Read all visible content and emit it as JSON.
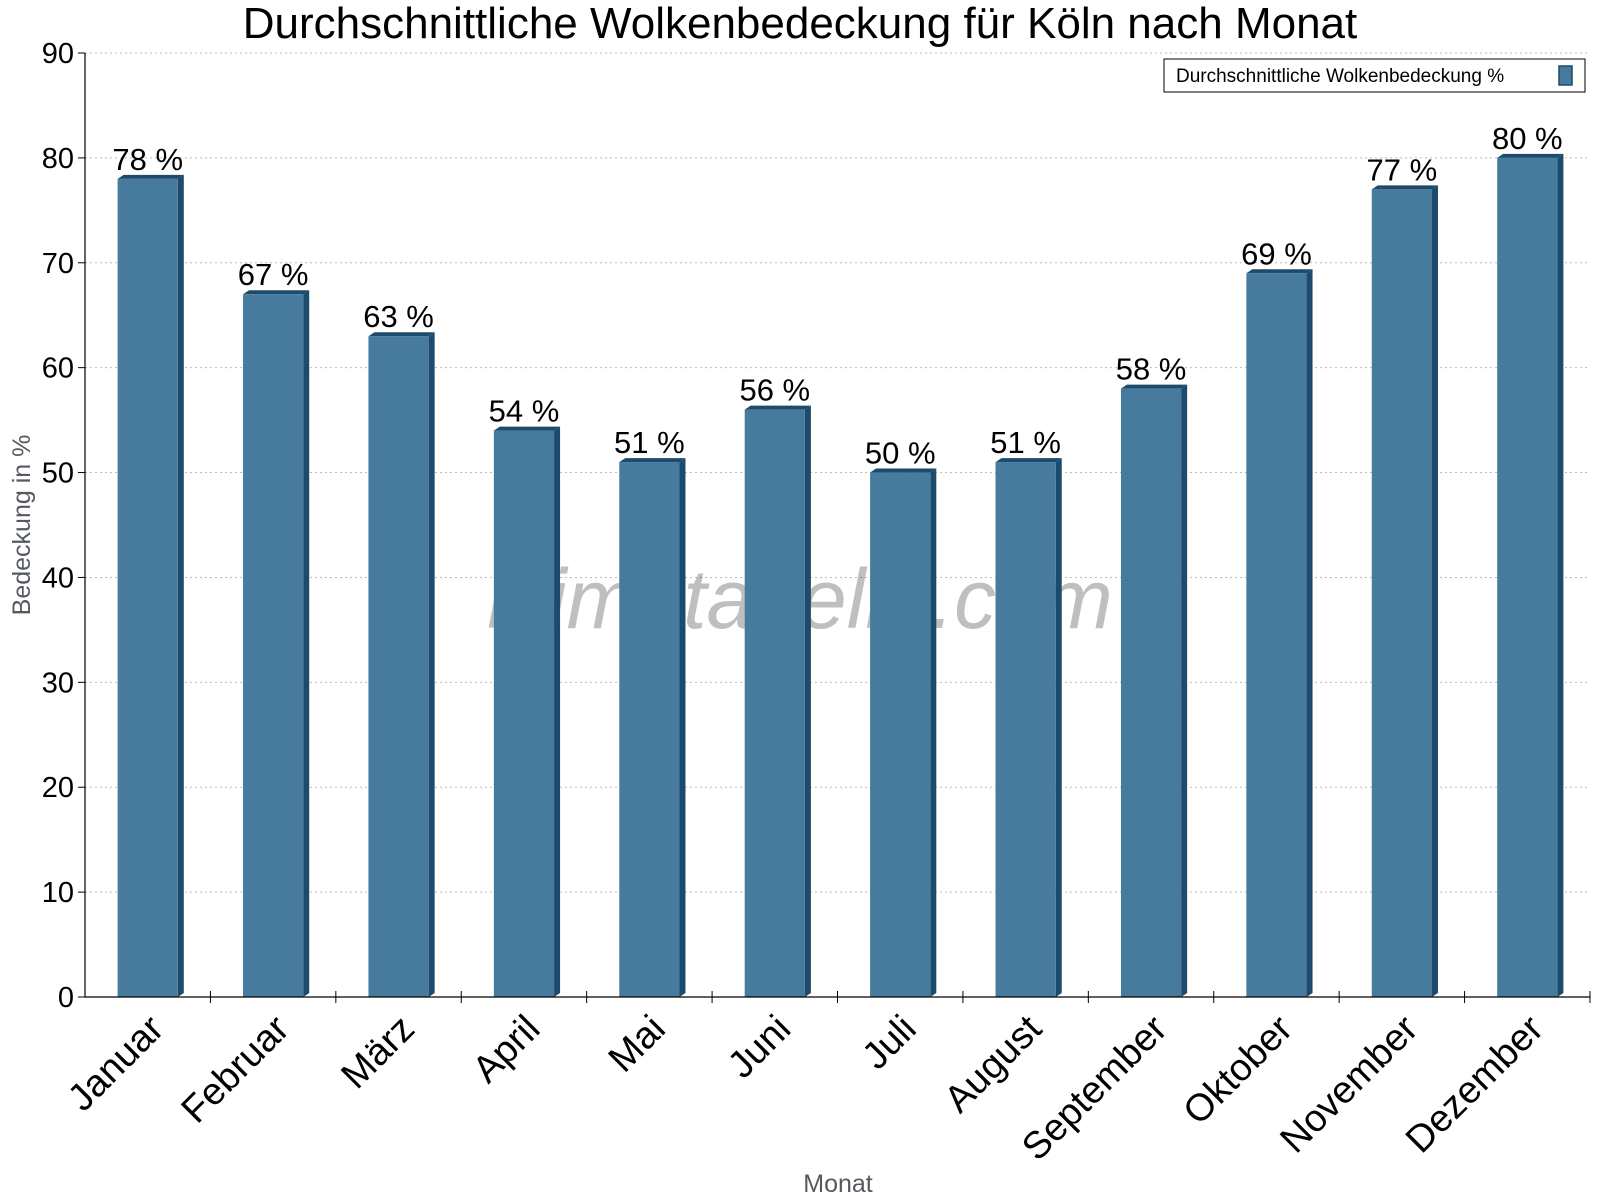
{
  "chart_data": {
    "type": "bar",
    "title": "Durchschnittliche Wolkenbedeckung für Köln nach Monat",
    "xlabel": "Monat",
    "ylabel": "Bedeckung in %",
    "categories": [
      "Januar",
      "Februar",
      "März",
      "April",
      "Mai",
      "Juni",
      "Juli",
      "August",
      "September",
      "Oktober",
      "November",
      "Dezember"
    ],
    "series": [
      {
        "name": "Durchschnittliche Wolkenbedeckung %",
        "values": [
          78,
          67,
          63,
          54,
          51,
          56,
          50,
          51,
          58,
          69,
          77,
          80
        ],
        "labels": [
          "78 %",
          "67 %",
          "63 %",
          "54 %",
          "51 %",
          "56 %",
          "50 %",
          "51 %",
          "58 %",
          "69 %",
          "77 %",
          "80 %"
        ]
      }
    ],
    "ylim": [
      0,
      90
    ],
    "yticks": [
      0,
      10,
      20,
      30,
      40,
      50,
      60,
      70,
      80,
      90
    ],
    "grid": true,
    "legend_position": "top-right",
    "colors": {
      "bar": "#467b9e",
      "bar_dark": "#1e4a6b",
      "grid": "#bbbbbb"
    }
  },
  "watermark": "klimatabelle.com"
}
